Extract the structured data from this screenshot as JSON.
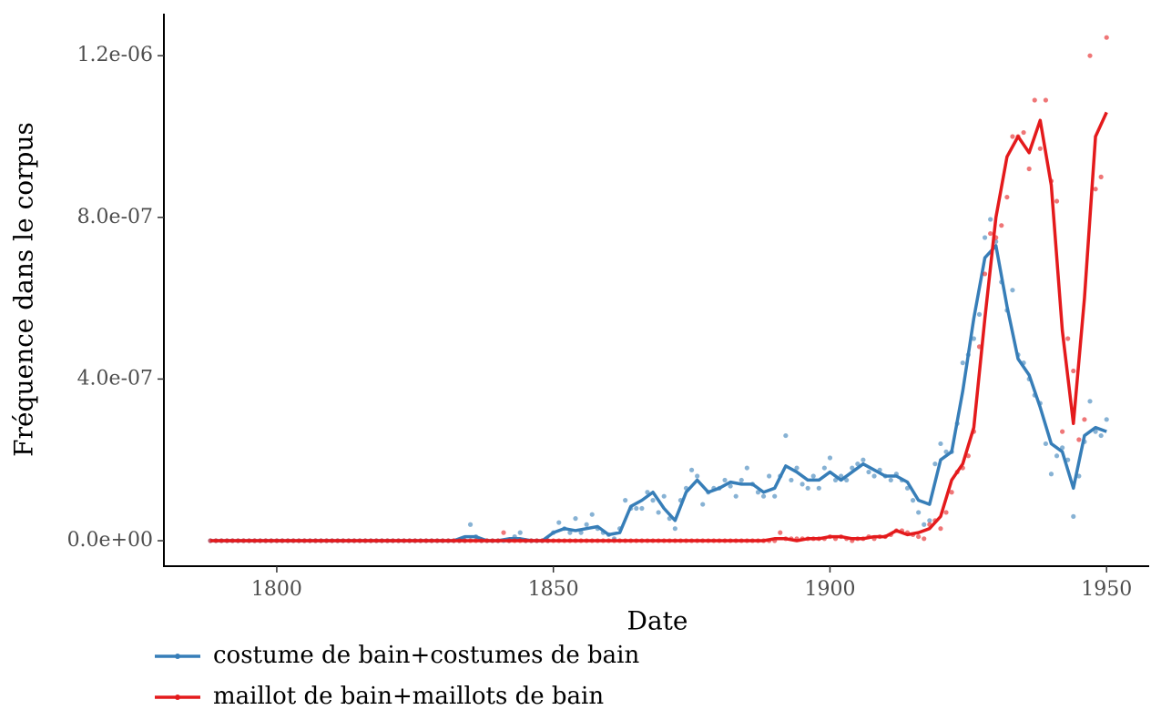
{
  "chart_data": {
    "type": "line",
    "x_label": "Date",
    "y_label": "Fréquence dans le corpus",
    "xlim": [
      1779.6,
      1957.7
    ],
    "ylim": [
      -6.3e-08,
      1.304e-06
    ],
    "xticks": [
      1800,
      1850,
      1900,
      1950
    ],
    "yticks": [
      {
        "value": 0,
        "label": "0.0e+00"
      },
      {
        "value": 4e-07,
        "label": "4.0e-07"
      },
      {
        "value": 8e-07,
        "label": "8.0e-07"
      },
      {
        "value": 1.2e-06,
        "label": "1.2e-06"
      }
    ],
    "grid": false,
    "legend": "bottom",
    "x": [
      1788,
      1789,
      1790,
      1791,
      1792,
      1793,
      1794,
      1795,
      1796,
      1797,
      1798,
      1799,
      1800,
      1801,
      1802,
      1803,
      1804,
      1805,
      1806,
      1807,
      1808,
      1809,
      1810,
      1811,
      1812,
      1813,
      1814,
      1815,
      1816,
      1817,
      1818,
      1819,
      1820,
      1821,
      1822,
      1823,
      1824,
      1825,
      1826,
      1827,
      1828,
      1829,
      1830,
      1831,
      1832,
      1833,
      1834,
      1835,
      1836,
      1837,
      1838,
      1839,
      1840,
      1841,
      1842,
      1843,
      1844,
      1845,
      1846,
      1847,
      1848,
      1849,
      1850,
      1851,
      1852,
      1853,
      1854,
      1855,
      1856,
      1857,
      1858,
      1859,
      1860,
      1861,
      1862,
      1863,
      1864,
      1865,
      1866,
      1867,
      1868,
      1869,
      1870,
      1871,
      1872,
      1873,
      1874,
      1875,
      1876,
      1877,
      1878,
      1879,
      1880,
      1881,
      1882,
      1883,
      1884,
      1885,
      1886,
      1887,
      1888,
      1889,
      1890,
      1891,
      1892,
      1893,
      1894,
      1895,
      1896,
      1897,
      1898,
      1899,
      1900,
      1901,
      1902,
      1903,
      1904,
      1905,
      1906,
      1907,
      1908,
      1909,
      1910,
      1911,
      1912,
      1913,
      1914,
      1915,
      1916,
      1917,
      1918,
      1919,
      1920,
      1921,
      1922,
      1923,
      1924,
      1925,
      1926,
      1927,
      1928,
      1929,
      1930,
      1931,
      1932,
      1933,
      1934,
      1935,
      1936,
      1937,
      1938,
      1939,
      1940,
      1941,
      1942,
      1943,
      1944,
      1945,
      1946,
      1947,
      1948,
      1949,
      1950
    ],
    "smooth_x": [
      1788,
      1830,
      1832,
      1834,
      1836,
      1838,
      1840,
      1842,
      1844,
      1846,
      1848,
      1850,
      1852,
      1854,
      1856,
      1858,
      1860,
      1862,
      1864,
      1866,
      1868,
      1870,
      1872,
      1874,
      1876,
      1878,
      1880,
      1882,
      1884,
      1886,
      1888,
      1890,
      1892,
      1894,
      1896,
      1898,
      1900,
      1902,
      1904,
      1906,
      1908,
      1910,
      1912,
      1914,
      1916,
      1918,
      1920,
      1922,
      1924,
      1926,
      1928,
      1930,
      1932,
      1934,
      1936,
      1938,
      1940,
      1942,
      1944,
      1946,
      1948,
      1950
    ],
    "series": [
      {
        "name": "costume de bain+costumes de bain",
        "color": "#377eb8",
        "values": [
          0,
          0,
          0,
          0,
          0,
          0,
          0,
          0,
          0,
          0,
          0,
          0,
          0,
          0,
          0,
          0,
          0,
          0,
          0,
          0,
          0,
          0,
          0,
          0,
          0,
          0,
          0,
          0,
          0,
          0,
          0,
          0,
          0,
          0,
          0,
          0,
          0,
          0,
          0,
          0,
          0,
          0,
          0,
          0,
          0,
          0,
          0,
          4e-08,
          1e-08,
          0,
          0,
          0,
          0,
          0,
          0,
          1e-08,
          2e-08,
          0,
          0,
          0,
          0,
          0,
          2e-08,
          4.5e-08,
          3e-08,
          2e-08,
          5.5e-08,
          2e-08,
          4e-08,
          6.5e-08,
          3e-08,
          2e-08,
          1.5e-08,
          5e-09,
          3e-08,
          1e-07,
          8e-08,
          8e-08,
          8e-08,
          1.2e-07,
          1e-07,
          7e-08,
          1.1e-07,
          5.5e-08,
          3e-08,
          1e-07,
          1.3e-07,
          1.75e-07,
          1.6e-07,
          9e-08,
          1.2e-07,
          1.3e-07,
          1.3e-07,
          1.5e-07,
          1.35e-07,
          1.1e-07,
          1.5e-07,
          1.8e-07,
          1.4e-07,
          1.2e-07,
          1.1e-07,
          1.6e-07,
          1.1e-07,
          1.6e-07,
          2.6e-07,
          1.5e-07,
          1.8e-07,
          1.4e-07,
          1.3e-07,
          1.6e-07,
          1.3e-07,
          1.8e-07,
          2.05e-07,
          1.5e-07,
          1.6e-07,
          1.5e-07,
          1.8e-07,
          1.9e-07,
          2e-07,
          1.7e-07,
          1.6e-07,
          1.75e-07,
          1.6e-07,
          1.5e-07,
          1.65e-07,
          1.5e-07,
          1.3e-07,
          1e-07,
          7e-08,
          4e-08,
          5e-08,
          1.9e-07,
          2.4e-07,
          2.2e-07,
          2.2e-07,
          2.9e-07,
          4.4e-07,
          4.6e-07,
          5e-07,
          5.6e-07,
          7.5e-07,
          7.95e-07,
          7.4e-07,
          6.4e-07,
          5.7e-07,
          6.2e-07,
          4.6e-07,
          4.4e-07,
          4e-07,
          3.6e-07,
          3.4e-07,
          2.4e-07,
          1.65e-07,
          2.1e-07,
          2.3e-07,
          2e-07,
          6e-08,
          1.6e-07,
          2.45e-07,
          3.45e-07,
          2.7e-07,
          2.6e-07,
          3e-07
        ],
        "smooth": [
          0,
          0,
          0,
          1e-08,
          1e-08,
          0,
          0,
          5e-09,
          5e-09,
          0,
          0,
          2e-08,
          3e-08,
          2.5e-08,
          3e-08,
          3.5e-08,
          1.5e-08,
          2e-08,
          8.5e-08,
          1e-07,
          1.2e-07,
          8e-08,
          5e-08,
          1.2e-07,
          1.5e-07,
          1.2e-07,
          1.3e-07,
          1.45e-07,
          1.4e-07,
          1.4e-07,
          1.2e-07,
          1.3e-07,
          1.85e-07,
          1.7e-07,
          1.5e-07,
          1.5e-07,
          1.7e-07,
          1.5e-07,
          1.7e-07,
          1.9e-07,
          1.75e-07,
          1.6e-07,
          1.6e-07,
          1.45e-07,
          1e-07,
          9e-08,
          2e-07,
          2.2e-07,
          3.7e-07,
          5.5e-07,
          7e-07,
          7.3e-07,
          5.8e-07,
          4.5e-07,
          4.1e-07,
          3.3e-07,
          2.4e-07,
          2.2e-07,
          1.3e-07,
          2.6e-07,
          2.8e-07,
          2.7e-07
        ]
      },
      {
        "name": "maillot de bain+maillots de bain",
        "color": "#e41a1c",
        "values": [
          0,
          0,
          0,
          0,
          0,
          0,
          0,
          0,
          0,
          0,
          0,
          0,
          0,
          0,
          0,
          0,
          0,
          0,
          0,
          0,
          0,
          0,
          0,
          0,
          0,
          0,
          0,
          0,
          0,
          0,
          0,
          0,
          0,
          0,
          0,
          0,
          0,
          0,
          0,
          0,
          0,
          0,
          0,
          0,
          0,
          0,
          0,
          0,
          0,
          0,
          0,
          0,
          0,
          2e-08,
          0,
          0,
          0,
          0,
          0,
          0,
          0,
          0,
          0,
          0,
          0,
          0,
          0,
          0,
          0,
          0,
          0,
          0,
          0,
          0,
          0,
          0,
          0,
          0,
          0,
          0,
          0,
          0,
          0,
          0,
          0,
          0,
          0,
          0,
          0,
          0,
          0,
          0,
          0,
          0,
          0,
          0,
          0,
          0,
          0,
          0,
          0,
          0,
          0,
          2e-08,
          5e-09,
          5e-09,
          5e-09,
          5e-09,
          5e-09,
          5e-09,
          5e-09,
          5e-09,
          1e-08,
          5e-09,
          1e-08,
          5e-09,
          0,
          5e-09,
          5e-09,
          1e-08,
          5e-09,
          1e-08,
          1e-08,
          1.5e-08,
          2.5e-08,
          2.5e-08,
          2e-08,
          1.5e-08,
          1e-08,
          5e-09,
          4e-08,
          5e-08,
          3e-08,
          7e-08,
          1.2e-07,
          1.7e-07,
          1.8e-07,
          2.1e-07,
          2.7e-07,
          4.8e-07,
          6.6e-07,
          7.6e-07,
          7.5e-07,
          7.8e-07,
          8.5e-07,
          1e-06,
          1e-06,
          1.01e-06,
          9.2e-07,
          1.09e-06,
          9.7e-07,
          1.09e-06,
          8.9e-07,
          8.4e-07,
          2.7e-07,
          5e-07,
          4.2e-07,
          2.5e-07,
          3e-07,
          1.2e-06,
          8.7e-07,
          9e-07,
          1.245e-06
        ],
        "smooth": [
          0,
          0,
          0,
          0,
          0,
          0,
          0,
          0,
          0,
          0,
          0,
          0,
          0,
          0,
          0,
          0,
          0,
          0,
          0,
          0,
          0,
          0,
          0,
          0,
          0,
          0,
          0,
          0,
          0,
          0,
          0,
          5e-09,
          5e-09,
          0,
          5e-09,
          5e-09,
          1e-08,
          1e-08,
          5e-09,
          5e-09,
          1e-08,
          1e-08,
          2.5e-08,
          1.5e-08,
          2e-08,
          3e-08,
          6e-08,
          1.5e-07,
          1.9e-07,
          2.8e-07,
          5.5e-07,
          8e-07,
          9.5e-07,
          1e-06,
          9.6e-07,
          1.04e-06,
          8.8e-07,
          5.2e-07,
          2.9e-07,
          6e-07,
          1e-06,
          1.06e-06
        ]
      }
    ]
  }
}
